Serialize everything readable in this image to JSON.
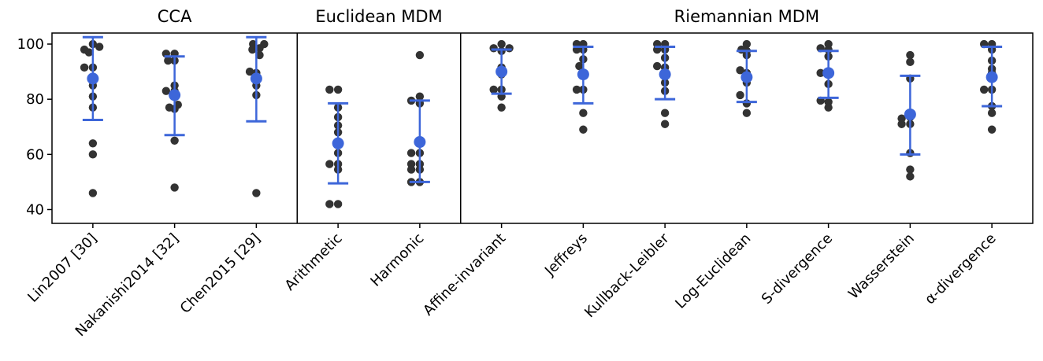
{
  "chart_data": {
    "type": "scatter",
    "colors": {
      "points": "#333333",
      "summary": "#3d66d9",
      "axes": "#000000"
    },
    "ylim": [
      35,
      104
    ],
    "yticks": [
      40,
      60,
      80,
      100
    ],
    "groups": [
      {
        "title": "CCA",
        "start": 0,
        "end": 2
      },
      {
        "title": "Euclidean  MDM",
        "start": 3,
        "end": 4
      },
      {
        "title": "Riemannian MDM",
        "start": 5,
        "end": 11
      }
    ],
    "categories": [
      {
        "label": "Lin2007 [30]",
        "mean": 87.5,
        "err_low": 72.5,
        "err_high": 102.5,
        "points": [
          [
            -0.13,
            98
          ],
          [
            0.0,
            100
          ],
          [
            0.1,
            99
          ],
          [
            -0.06,
            97
          ],
          [
            -0.13,
            91.5
          ],
          [
            0.0,
            91.5
          ],
          [
            0.0,
            85
          ],
          [
            0.0,
            81
          ],
          [
            0.0,
            77
          ],
          [
            0.0,
            64
          ],
          [
            0.0,
            60
          ],
          [
            0.0,
            46
          ]
        ]
      },
      {
        "label": "Nakanishi2014 [32]",
        "mean": 81.5,
        "err_low": 67,
        "err_high": 95.5,
        "points": [
          [
            -0.13,
            96.5
          ],
          [
            0.0,
            96.5
          ],
          [
            -0.1,
            94
          ],
          [
            0.0,
            94
          ],
          [
            0.0,
            85
          ],
          [
            -0.13,
            83
          ],
          [
            0.0,
            83
          ],
          [
            0.05,
            78
          ],
          [
            -0.08,
            77
          ],
          [
            0.0,
            76.5
          ],
          [
            0.0,
            65
          ],
          [
            0.0,
            48
          ]
        ]
      },
      {
        "label": "Chen2015 [29]",
        "mean": 87.5,
        "err_low": 72,
        "err_high": 102.5,
        "points": [
          [
            -0.05,
            100
          ],
          [
            0.12,
            100
          ],
          [
            0.05,
            98.5
          ],
          [
            -0.06,
            98
          ],
          [
            0.05,
            96
          ],
          [
            -0.1,
            90
          ],
          [
            0.0,
            89.5
          ],
          [
            0.0,
            85
          ],
          [
            0.0,
            81.5
          ],
          [
            0.0,
            46
          ]
        ]
      },
      {
        "label": "Arithmetic",
        "mean": 64,
        "err_low": 49.5,
        "err_high": 78.5,
        "points": [
          [
            -0.13,
            83.5
          ],
          [
            0.0,
            83.5
          ],
          [
            0.0,
            77
          ],
          [
            0.0,
            73.5
          ],
          [
            0.0,
            70.5
          ],
          [
            0.0,
            68
          ],
          [
            0.0,
            60.5
          ],
          [
            -0.13,
            56.5
          ],
          [
            0.0,
            56.5
          ],
          [
            0.0,
            54.5
          ],
          [
            -0.13,
            42
          ],
          [
            0.0,
            42
          ]
        ]
      },
      {
        "label": "Harmonic",
        "mean": 64.5,
        "err_low": 50,
        "err_high": 79.5,
        "points": [
          [
            0.0,
            96
          ],
          [
            0.0,
            81
          ],
          [
            -0.13,
            79.5
          ],
          [
            0.0,
            78.5
          ],
          [
            -0.13,
            60.5
          ],
          [
            0.0,
            60.5
          ],
          [
            -0.13,
            56.5
          ],
          [
            0.0,
            56.5
          ],
          [
            -0.13,
            54.5
          ],
          [
            0.0,
            54.5
          ],
          [
            -0.13,
            50
          ],
          [
            0.0,
            50
          ]
        ]
      },
      {
        "label": "Affine-invariant",
        "mean": 90,
        "err_low": 82,
        "err_high": 98,
        "points": [
          [
            0.0,
            100
          ],
          [
            0.12,
            98.5
          ],
          [
            -0.12,
            98.5
          ],
          [
            0.0,
            97.5
          ],
          [
            0.0,
            91.5
          ],
          [
            0.0,
            89
          ],
          [
            -0.12,
            83.5
          ],
          [
            0.0,
            83.5
          ],
          [
            0.0,
            81
          ],
          [
            0.0,
            77
          ]
        ]
      },
      {
        "label": "Jeffreys",
        "mean": 89,
        "err_low": 78.5,
        "err_high": 99,
        "points": [
          [
            -0.1,
            100
          ],
          [
            0.0,
            100
          ],
          [
            0.0,
            98
          ],
          [
            -0.1,
            98
          ],
          [
            0.0,
            94.5
          ],
          [
            -0.06,
            92
          ],
          [
            0.0,
            89.5
          ],
          [
            -0.1,
            83.5
          ],
          [
            0.0,
            83.5
          ],
          [
            0.0,
            75
          ],
          [
            0.0,
            69
          ]
        ]
      },
      {
        "label": "Kullback-Leibler",
        "mean": 89,
        "err_low": 80,
        "err_high": 99,
        "points": [
          [
            -0.12,
            100
          ],
          [
            0.0,
            100
          ],
          [
            -0.12,
            98
          ],
          [
            0.0,
            98
          ],
          [
            0.0,
            95
          ],
          [
            -0.12,
            92
          ],
          [
            0.0,
            91.5
          ],
          [
            0.0,
            86
          ],
          [
            0.0,
            83
          ],
          [
            0.0,
            75
          ],
          [
            0.0,
            71
          ]
        ]
      },
      {
        "label": "Log-Euclidean",
        "mean": 88,
        "err_low": 79,
        "err_high": 97.5,
        "points": [
          [
            0.0,
            100
          ],
          [
            -0.08,
            98
          ],
          [
            0.0,
            97.5
          ],
          [
            0.0,
            96
          ],
          [
            -0.1,
            90.5
          ],
          [
            0.0,
            89.5
          ],
          [
            0.0,
            86
          ],
          [
            -0.1,
            81.5
          ],
          [
            0.0,
            78.5
          ],
          [
            0.0,
            75
          ]
        ]
      },
      {
        "label": "S-divergence",
        "mean": 89.5,
        "err_low": 80.5,
        "err_high": 97.5,
        "points": [
          [
            0.0,
            100
          ],
          [
            -0.12,
            98.5
          ],
          [
            0.0,
            98
          ],
          [
            0.0,
            95.5
          ],
          [
            -0.12,
            89.5
          ],
          [
            0.0,
            89
          ],
          [
            0.0,
            85.5
          ],
          [
            -0.12,
            79.5
          ],
          [
            0.0,
            79
          ],
          [
            0.0,
            77
          ]
        ]
      },
      {
        "label": "Wasserstein",
        "mean": 74.5,
        "err_low": 60,
        "err_high": 88.5,
        "points": [
          [
            0.0,
            96
          ],
          [
            0.0,
            93.5
          ],
          [
            0.0,
            87.5
          ],
          [
            -0.13,
            73
          ],
          [
            0.0,
            73.5
          ],
          [
            -0.13,
            71
          ],
          [
            0.0,
            71
          ],
          [
            0.0,
            60.5
          ],
          [
            0.0,
            54.5
          ],
          [
            0.0,
            52
          ]
        ]
      },
      {
        "label": "α-divergence",
        "mean": 88,
        "err_low": 77.5,
        "err_high": 99,
        "points": [
          [
            -0.12,
            100
          ],
          [
            0.0,
            100
          ],
          [
            0.0,
            98
          ],
          [
            0.0,
            94
          ],
          [
            0.0,
            91
          ],
          [
            0.0,
            89.5
          ],
          [
            -0.12,
            83.5
          ],
          [
            0.0,
            83.5
          ],
          [
            0.0,
            77.5
          ],
          [
            0.0,
            75
          ],
          [
            0.0,
            69
          ]
        ]
      }
    ]
  }
}
